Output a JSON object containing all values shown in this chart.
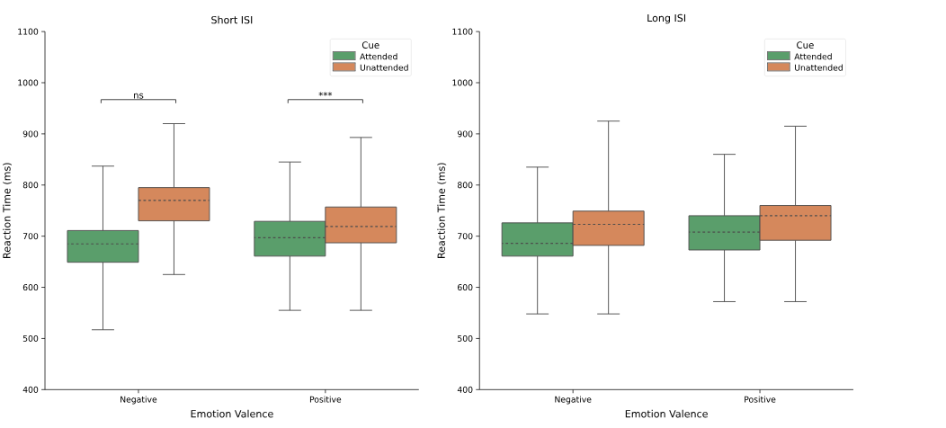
{
  "chart_data": [
    {
      "type": "box",
      "title": "Short ISI",
      "xlabel": "Emotion Valence",
      "ylabel": "Reaction Time (ms)",
      "legend_title": "Cue",
      "legend": "top right",
      "categories": [
        "Negative",
        "Positive"
      ],
      "ylim": [
        400,
        1100
      ],
      "yticks": [
        400,
        500,
        600,
        700,
        800,
        900,
        1000,
        1100
      ],
      "annotations": [
        "ns",
        "***"
      ],
      "series": [
        {
          "name": "Attended",
          "color": "#5a9e6b",
          "boxes": [
            {
              "low": 517,
              "q1": 649,
              "median": 685,
              "q3": 711,
              "high": 837
            },
            {
              "low": 555,
              "q1": 661,
              "median": 697,
              "q3": 729,
              "high": 845
            }
          ]
        },
        {
          "name": "Unattended",
          "color": "#d5885c",
          "boxes": [
            {
              "low": 625,
              "q1": 730,
              "median": 770,
              "q3": 795,
              "high": 920
            },
            {
              "low": 555,
              "q1": 687,
              "median": 719,
              "q3": 757,
              "high": 893
            }
          ]
        }
      ]
    },
    {
      "type": "box",
      "title": "Long ISI",
      "xlabel": "Emotion Valence",
      "ylabel": "Reaction Time (ms)",
      "legend_title": "Cue",
      "legend": "top right",
      "categories": [
        "Negative",
        "Positive"
      ],
      "ylim": [
        400,
        1100
      ],
      "yticks": [
        400,
        500,
        600,
        700,
        800,
        900,
        1000,
        1100
      ],
      "series": [
        {
          "name": "Attended",
          "color": "#5a9e6b",
          "boxes": [
            {
              "low": 548,
              "q1": 661,
              "median": 686,
              "q3": 726,
              "high": 835
            },
            {
              "low": 572,
              "q1": 673,
              "median": 708,
              "q3": 740,
              "high": 860
            }
          ]
        },
        {
          "name": "Unattended",
          "color": "#d5885c",
          "boxes": [
            {
              "low": 548,
              "q1": 682,
              "median": 723,
              "q3": 749,
              "high": 925
            },
            {
              "low": 572,
              "q1": 692,
              "median": 740,
              "q3": 760,
              "high": 915
            }
          ]
        }
      ]
    }
  ]
}
